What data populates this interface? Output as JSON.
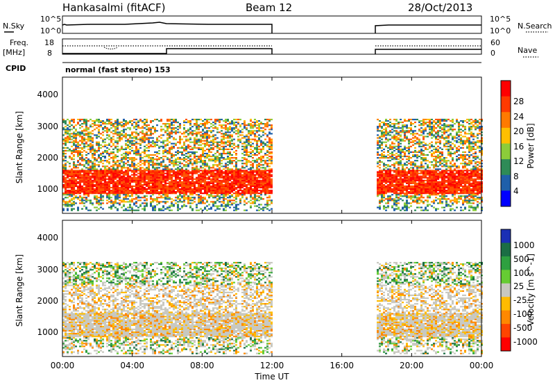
{
  "header": {
    "station": "Hankasalmi (fitACF)",
    "beam": "Beam 12",
    "date": "28/Oct/2013"
  },
  "panel_nsky": {
    "left_label": "N.Sky",
    "right_label": "N.Search",
    "tick_top_left": "10^5",
    "tick_bottom_left": "10^0",
    "tick_top_right": "10^5",
    "tick_bottom_right": "10^0"
  },
  "panel_freq": {
    "left_label_line1": "Freq.",
    "left_label_line2": "[MHz]",
    "right_label": "Nave",
    "left_ticks": [
      "18",
      "8"
    ],
    "right_ticks": [
      "60",
      "0"
    ]
  },
  "cpid": {
    "label": "CPID",
    "value": "normal (fast stereo) 153"
  },
  "power_panel": {
    "ylabel": "Slant Range [km]",
    "yticks": [
      "4000",
      "3000",
      "2000",
      "1000"
    ],
    "colorbar_label": "Power [dB]",
    "colorbar_ticks": [
      "28",
      "24",
      "20",
      "16",
      "12",
      "8",
      "4"
    ],
    "colorbar_colors": [
      "#ff0000",
      "#ff3a00",
      "#ff7a00",
      "#ffbf00",
      "#8ccc3a",
      "#2e8b57",
      "#1f5faa",
      "#0000ff"
    ]
  },
  "velocity_panel": {
    "ylabel": "Slant Range [km]",
    "yticks": [
      "4000",
      "3000",
      "2000",
      "1000"
    ],
    "colorbar_label": "Velocity [m s^-1]",
    "colorbar_ticks": [
      "1000",
      "500",
      "100",
      "25",
      "-25",
      "-100",
      "-500",
      "-1000"
    ],
    "colorbar_colors": [
      "#1a2fb5",
      "#1b6e44",
      "#2ea040",
      "#66cc33",
      "#c8c8c0",
      "#ffbb00",
      "#ff8800",
      "#ff4400",
      "#ff0000"
    ]
  },
  "xaxis": {
    "label": "Time UT",
    "ticks": [
      "00:00",
      "04:00",
      "08:00",
      "12:00",
      "16:00",
      "20:00",
      "00:00"
    ]
  },
  "chart_data": [
    {
      "type": "heatmap",
      "title": "Power [dB]",
      "xlabel": "Time UT",
      "ylabel": "Slant Range [km]",
      "xlim_hours": [
        0,
        24
      ],
      "ylim": [
        180,
        4500
      ],
      "data_windows_hours": [
        [
          0,
          12
        ],
        [
          18,
          24
        ]
      ],
      "dominant_echo_band_km": [
        800,
        1600
      ],
      "colorbar_range_db": [
        0,
        30
      ]
    },
    {
      "type": "heatmap",
      "title": "Velocity [m s-1]",
      "xlabel": "Time UT",
      "ylabel": "Slant Range [km]",
      "xlim_hours": [
        0,
        24
      ],
      "ylim": [
        180,
        4500
      ],
      "data_windows_hours": [
        [
          0,
          12
        ],
        [
          18,
          24
        ]
      ],
      "colorbar_levels": [
        1000,
        500,
        100,
        25,
        -25,
        -100,
        -500,
        -1000
      ]
    }
  ]
}
